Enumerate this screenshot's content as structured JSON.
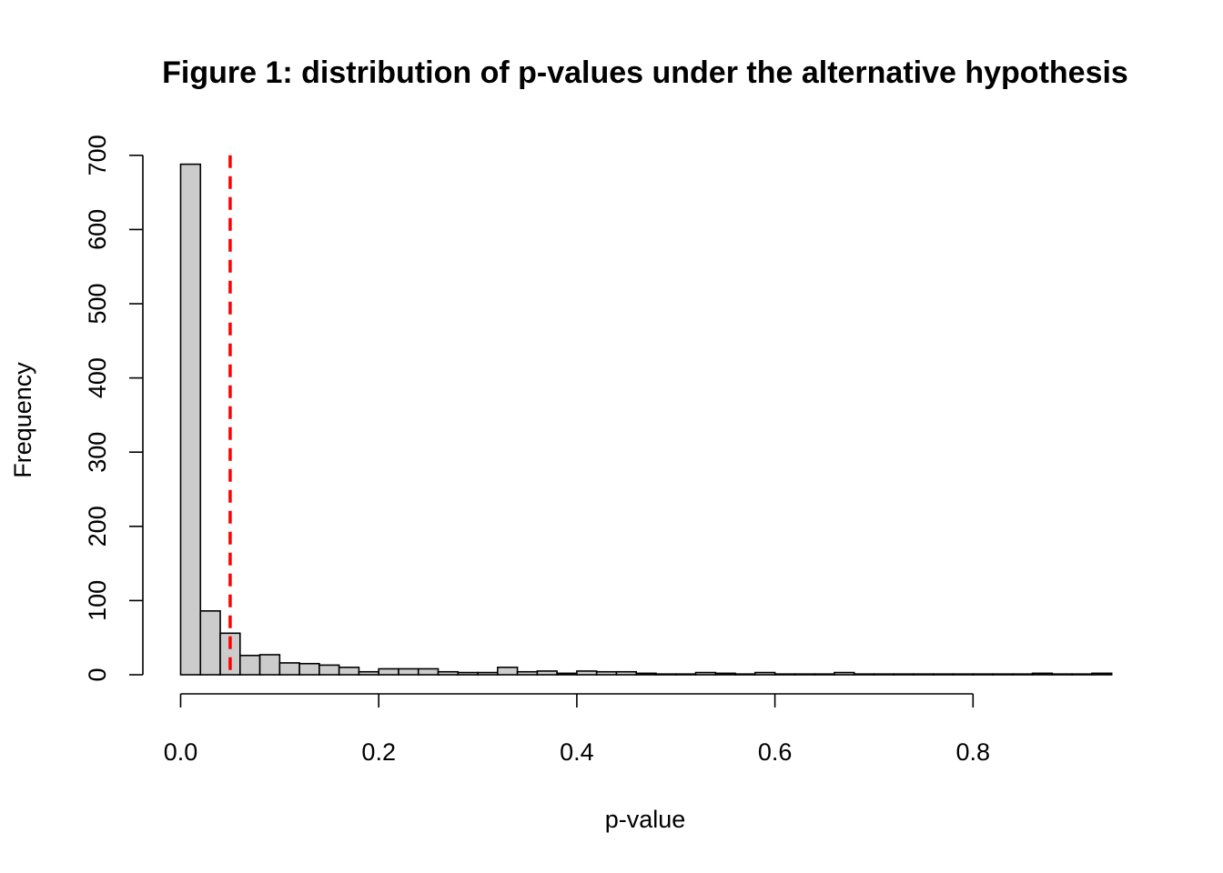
{
  "chart_data": {
    "type": "bar",
    "subtype": "histogram",
    "title": "Figure 1: distribution of p-values under the alternative hypothesis",
    "xlabel": "p-value",
    "ylabel": "Frequency",
    "bin_width": 0.02,
    "x_start": 0.0,
    "xlim": [
      0.0,
      0.94
    ],
    "ylim": [
      0,
      700
    ],
    "x_ticks": [
      {
        "value": 0.0,
        "label": "0.0"
      },
      {
        "value": 0.2,
        "label": "0.2"
      },
      {
        "value": 0.4,
        "label": "0.4"
      },
      {
        "value": 0.6,
        "label": "0.6"
      },
      {
        "value": 0.8,
        "label": "0.8"
      }
    ],
    "y_ticks": [
      {
        "value": 0,
        "label": "0"
      },
      {
        "value": 100,
        "label": "100"
      },
      {
        "value": 200,
        "label": "200"
      },
      {
        "value": 300,
        "label": "300"
      },
      {
        "value": 400,
        "label": "400"
      },
      {
        "value": 500,
        "label": "500"
      },
      {
        "value": 600,
        "label": "600"
      },
      {
        "value": 700,
        "label": "700"
      }
    ],
    "frequencies": [
      688,
      86,
      56,
      26,
      27,
      16,
      15,
      13,
      10,
      4,
      8,
      8,
      8,
      4,
      3,
      3,
      10,
      4,
      5,
      2,
      5,
      4,
      4,
      2,
      1,
      1,
      3,
      2,
      1,
      3,
      1,
      1,
      1,
      3,
      1,
      1,
      1,
      1,
      1,
      1,
      1,
      1,
      1,
      2,
      1,
      1,
      2
    ],
    "reference_line": {
      "x": 0.05,
      "color": "#ff0000",
      "style": "dashed"
    },
    "bar_fill": "#cccccc",
    "bar_stroke": "#000000",
    "grid": false,
    "legend": "none"
  }
}
